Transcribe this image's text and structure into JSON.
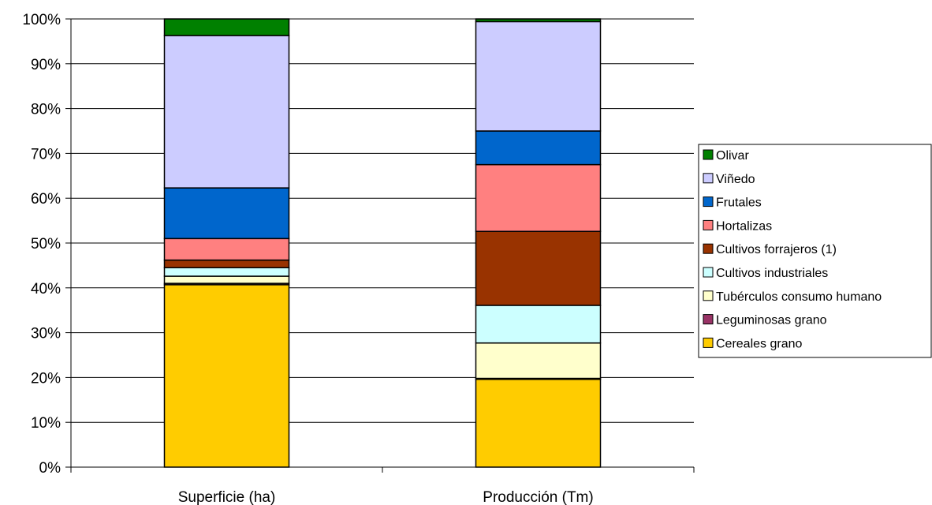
{
  "chart_data": {
    "type": "bar",
    "stacked": "percent",
    "categories": [
      "Superficie (ha)",
      "Producción (Tm)"
    ],
    "y_ticks": [
      "0%",
      "10%",
      "20%",
      "30%",
      "40%",
      "50%",
      "60%",
      "70%",
      "80%",
      "90%",
      "100%"
    ],
    "ylim": [
      0,
      100
    ],
    "grid": true,
    "legend_position": "right",
    "series": [
      {
        "name": "Cereales grano",
        "color": "#FFCC00",
        "values": [
          40.7,
          19.6
        ]
      },
      {
        "name": "Leguminosas grano",
        "color": "#993366",
        "values": [
          0.3,
          0.2
        ]
      },
      {
        "name": "Tubérculos consumo humano",
        "color": "#FFFFCC",
        "values": [
          1.6,
          7.9
        ]
      },
      {
        "name": "Cultivos industriales",
        "color": "#CCFFFF",
        "values": [
          1.9,
          8.4
        ]
      },
      {
        "name": "Cultivos forrajeros (1)",
        "color": "#993300",
        "values": [
          1.7,
          16.5
        ]
      },
      {
        "name": "Hortalizas",
        "color": "#FF8080",
        "values": [
          4.8,
          14.9
        ]
      },
      {
        "name": "Frutales",
        "color": "#0066CC",
        "values": [
          11.3,
          7.5
        ]
      },
      {
        "name": "Viñedo",
        "color": "#CCCCFF",
        "values": [
          34.0,
          24.4
        ]
      },
      {
        "name": "Olivar",
        "color": "#008000",
        "values": [
          3.7,
          0.6
        ]
      }
    ]
  }
}
